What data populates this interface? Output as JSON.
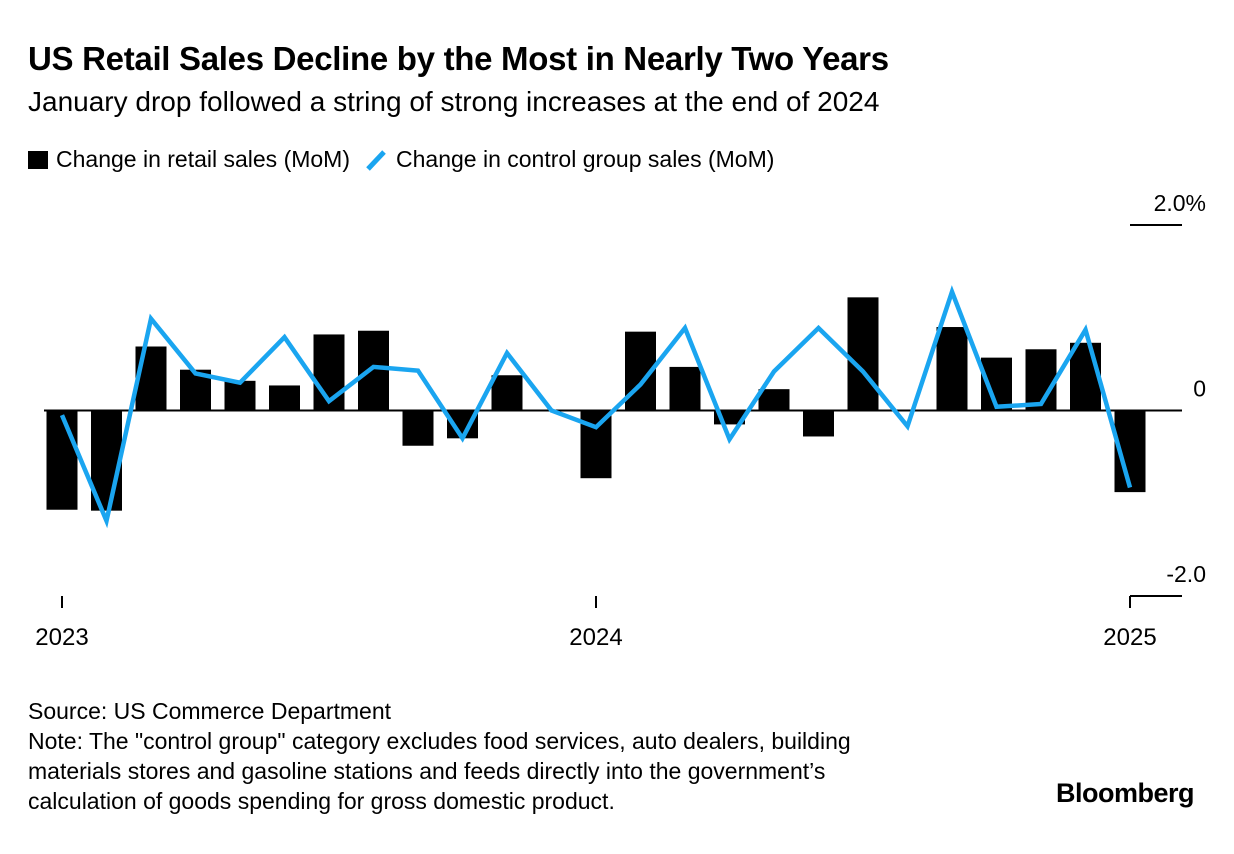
{
  "title": "US Retail Sales Decline by the Most in Nearly Two Years",
  "subtitle": "January drop followed a string of strong increases at the end of 2024",
  "legend": {
    "bars_label": "Change in retail sales (MoM)",
    "line_label": "Change in control group sales (MoM)"
  },
  "source": "Source: US Commerce Department",
  "note": "Note: The \"control group\" category excludes food services, auto dealers, building materials stores and gasoline stations and feeds directly into the government’s calculation of goods spending for gross domestic product.",
  "brand": "Bloomberg",
  "colors": {
    "bars": "#000000",
    "line": "#1aa5f0",
    "axis": "#000000"
  },
  "chart_data": {
    "type": "bar",
    "x": [
      "2023-01",
      "2023-02",
      "2023-03",
      "2023-04",
      "2023-05",
      "2023-06",
      "2023-07",
      "2023-08",
      "2023-09",
      "2023-10",
      "2023-11",
      "2023-12",
      "2024-01",
      "2024-02",
      "2024-03",
      "2024-04",
      "2024-05",
      "2024-06",
      "2024-07",
      "2024-08",
      "2024-09",
      "2024-10",
      "2024-11",
      "2024-12",
      "2025-01"
    ],
    "series": [
      {
        "name": "Change in retail sales (MoM)",
        "type": "bar",
        "values": [
          -1.07,
          -1.08,
          0.69,
          0.44,
          0.32,
          0.27,
          0.82,
          0.86,
          -0.38,
          -0.3,
          0.38,
          0.0,
          -0.73,
          0.85,
          0.47,
          -0.15,
          0.23,
          -0.28,
          1.22,
          0.0,
          0.9,
          0.57,
          0.66,
          0.73,
          -0.88
        ]
      },
      {
        "name": "Change in control group sales (MoM)",
        "type": "line",
        "values": [
          -0.05,
          -1.19,
          0.99,
          0.4,
          0.3,
          0.79,
          0.1,
          0.47,
          0.43,
          -0.3,
          0.62,
          0.0,
          -0.18,
          0.28,
          0.89,
          -0.31,
          0.42,
          0.89,
          0.42,
          -0.17,
          1.28,
          0.04,
          0.07,
          0.87,
          -0.83
        ]
      }
    ],
    "bar_gaps": [
      11,
      19
    ],
    "xticks": [
      {
        "x": "2023-01",
        "label": "2023"
      },
      {
        "x": "2024-01",
        "label": "2024"
      },
      {
        "x": "2025-01",
        "label": "2025"
      }
    ],
    "yticks": [
      {
        "value": 2.0,
        "label": "2.0%"
      },
      {
        "value": 0,
        "label": "0"
      },
      {
        "value": -2.0,
        "label": "-2.0"
      }
    ],
    "ylim": [
      -2.0,
      2.0
    ],
    "xlabel": "",
    "ylabel": "",
    "grid": false,
    "legend_position": "top-left"
  }
}
